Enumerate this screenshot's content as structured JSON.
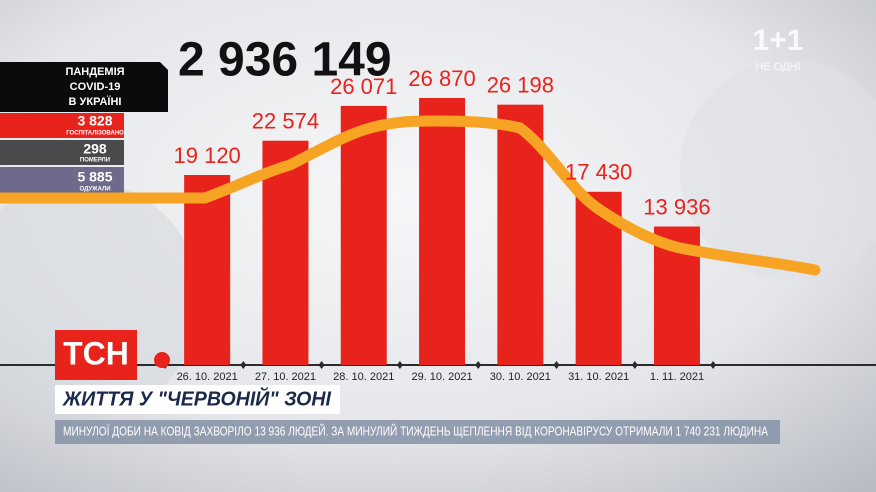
{
  "chart_data": {
    "type": "bar",
    "categories": [
      "26. 10. 2021",
      "27. 10. 2021",
      "28. 10. 2021",
      "29. 10. 2021",
      "30. 10. 2021",
      "31. 10. 2021",
      "1. 11. 2021"
    ],
    "values": [
      19120,
      22574,
      26071,
      26870,
      26198,
      17430,
      13936
    ],
    "value_labels": [
      "19 120",
      "22 574",
      "26 071",
      "26 870",
      "26 198",
      "17 430",
      "13 936"
    ],
    "color": "#e8231c"
  },
  "total": "2 936 149",
  "panel": {
    "title": [
      "ПАНДЕМІЯ",
      "COVID-19",
      "В УКРАЇНІ"
    ],
    "stats": [
      {
        "value": "3 828",
        "label": "ГОСПІТАЛІЗОВАНО"
      },
      {
        "value": "298",
        "label": "ПОМЕРЛИ"
      },
      {
        "value": "5 885",
        "label": "ОДУЖАЛИ"
      }
    ]
  },
  "logo": {
    "brand": "1+1",
    "slogan": "НЕ ОДНІ"
  },
  "program": "ТСН",
  "headline": "ЖИТТЯ У \"ЧЕРВОНІЙ\" ЗОНІ",
  "ticker": "МИНУЛОЇ ДОБИ НА КОВІД ЗАХВОРІЛО 13 936 ЛЮДЕЙ. ЗА МИНУЛИЙ ТИЖДЕНЬ ЩЕПЛЕННЯ ВІД КОРОНАВІРУСУ ОТРИМАЛИ 1 740 231 ЛЮДИНА"
}
